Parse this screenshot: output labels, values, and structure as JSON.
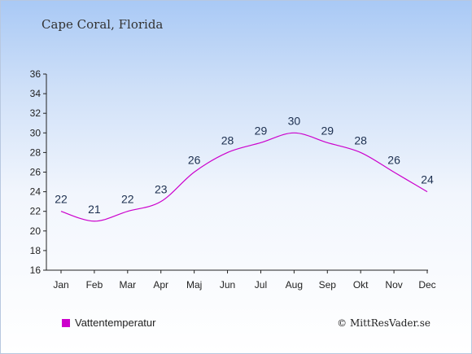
{
  "chart_data": {
    "type": "line",
    "title": "Cape Coral, Florida",
    "categories": [
      "Jan",
      "Feb",
      "Mar",
      "Apr",
      "Maj",
      "Jun",
      "Jul",
      "Aug",
      "Sep",
      "Okt",
      "Nov",
      "Dec"
    ],
    "series": [
      {
        "name": "Vattentemperatur",
        "values": [
          22,
          21,
          22,
          23,
          26,
          28,
          29,
          30,
          29,
          28,
          26,
          24
        ],
        "color": "#cc00cc"
      }
    ],
    "ylim": [
      16,
      36
    ],
    "yticks": [
      16,
      18,
      20,
      22,
      24,
      26,
      28,
      30,
      32,
      34,
      36
    ],
    "grid": false,
    "legend_position": "bottom-left"
  },
  "copyright": "© MittResVader.se"
}
